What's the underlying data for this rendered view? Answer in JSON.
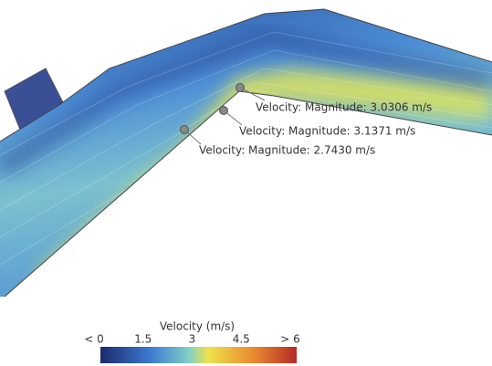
{
  "probes": [
    {
      "label": "Velocity: Magnitude: 3.0306 m/s"
    },
    {
      "label": "Velocity: Magnitude: 3.1371 m/s"
    },
    {
      "label": "Velocity: Magnitude: 2.7430 m/s"
    }
  ],
  "colorbar": {
    "title": "Velocity (m/s)",
    "ticks": [
      "< 0",
      "1.5",
      "3",
      "4.5",
      "> 6"
    ]
  }
}
